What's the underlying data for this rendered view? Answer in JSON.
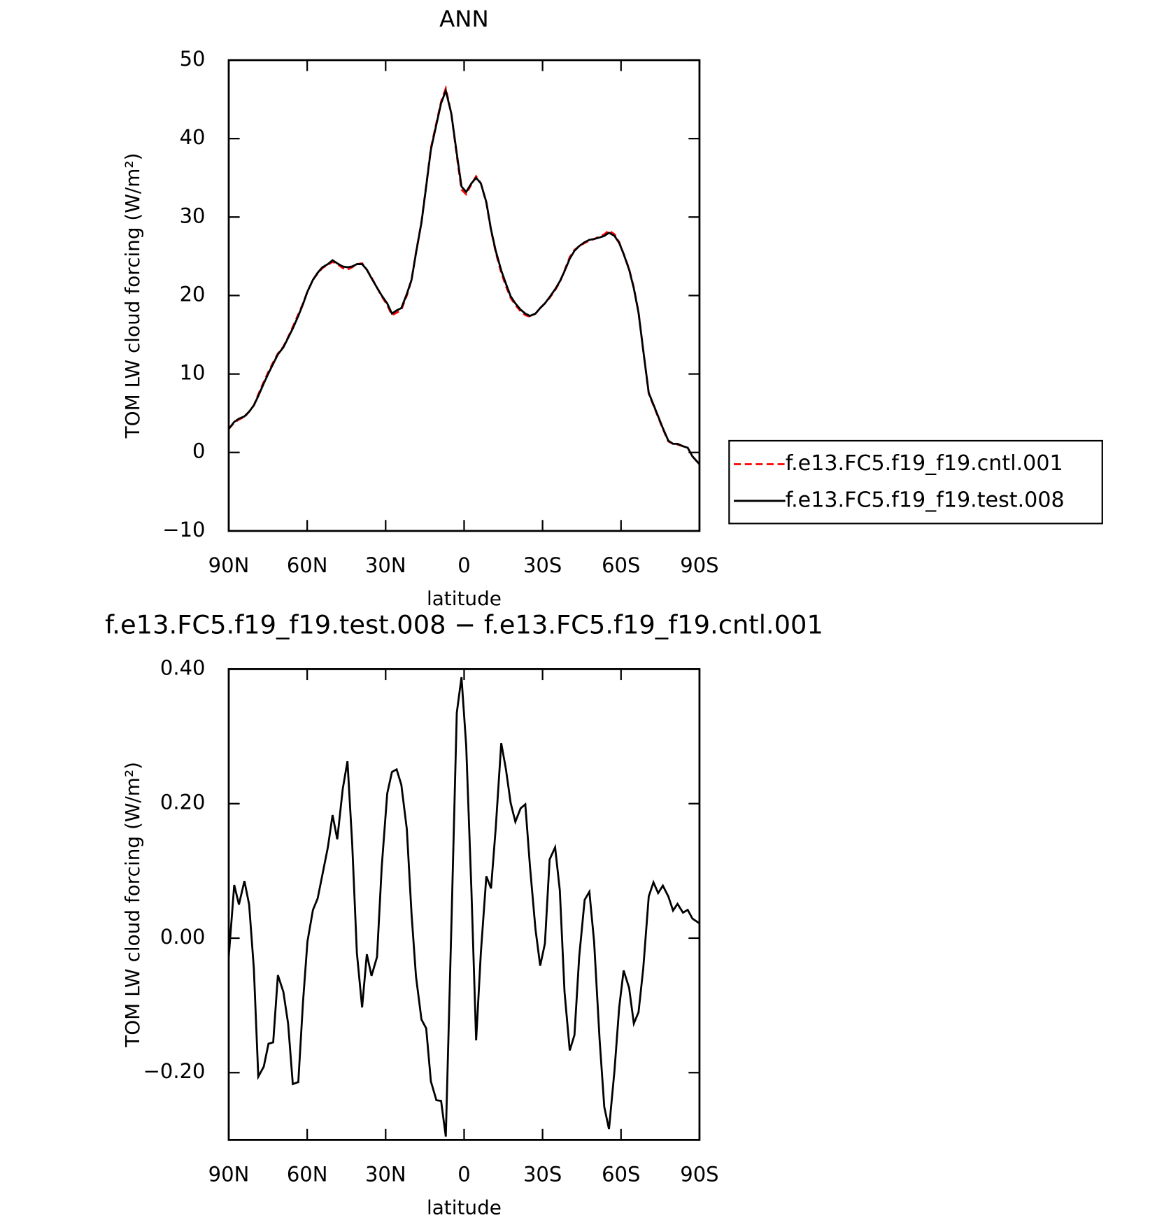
{
  "chart_data": [
    {
      "type": "line",
      "title": "ANN",
      "xlabel": "latitude",
      "ylabel": "TOM LW cloud forcing (W/m²)",
      "x": [
        90,
        87.9,
        86.1,
        84.0,
        82.2,
        80.4,
        78.7,
        76.6,
        74.8,
        73.0,
        71.2,
        69.1,
        67.3,
        65.5,
        63.4,
        61.6,
        59.9,
        57.8,
        56.0,
        54.2,
        52.1,
        50.3,
        48.5,
        46.4,
        44.6,
        42.8,
        41.0,
        39.0,
        37.2,
        35.4,
        33.3,
        31.5,
        29.4,
        27.6,
        25.8,
        24.0,
        21.9,
        20.1,
        18.4,
        16.3,
        14.5,
        12.7,
        10.6,
        8.8,
        7.0,
        4.9,
        2.8,
        1.0,
        -0.8,
        -2.8,
        -4.6,
        -6.4,
        -8.5,
        -10.3,
        -12.1,
        -14.2,
        -16.0,
        -17.8,
        -19.6,
        -21.6,
        -23.4,
        -25.2,
        -27.3,
        -29.1,
        -30.9,
        -32.7,
        -34.8,
        -36.6,
        -38.4,
        -40.4,
        -42.2,
        -44.0,
        -46.1,
        -47.9,
        -49.7,
        -51.8,
        -53.6,
        -55.4,
        -57.5,
        -59.3,
        -61.0,
        -63.1,
        -64.9,
        -66.7,
        -68.5,
        -70.6,
        -72.4,
        -74.2,
        -76.0,
        -78.1,
        -79.9,
        -81.6,
        -83.7,
        -85.5,
        -87.3,
        -90
      ],
      "series": [
        {
          "name": "f.e13.FC5.f19_f19.cntl.001",
          "color": "#ff0000",
          "linestyle": "dashed",
          "values": [
            3.0,
            3.8,
            4.2,
            4.5,
            5.2,
            6.0,
            7.4,
            9.0,
            10.3,
            11.5,
            12.6,
            13.5,
            14.7,
            16.0,
            17.6,
            19.0,
            20.5,
            22.0,
            22.8,
            23.5,
            23.9,
            24.3,
            24.0,
            23.5,
            23.3,
            23.6,
            24.0,
            24.1,
            23.3,
            22.3,
            21.0,
            19.9,
            18.8,
            17.5,
            17.8,
            18.2,
            20.0,
            22.0,
            25.5,
            29.4,
            34.0,
            38.8,
            42.0,
            44.7,
            46.4,
            43.2,
            37.8,
            33.5,
            32.9,
            34.2,
            35.2,
            34.3,
            31.8,
            28.3,
            25.5,
            22.9,
            21.2,
            19.7,
            18.8,
            18.0,
            17.5,
            17.3,
            17.7,
            18.4,
            19.0,
            19.7,
            20.7,
            21.7,
            23.2,
            24.9,
            25.8,
            26.3,
            26.7,
            27.0,
            27.2,
            27.5,
            27.8,
            28.3,
            27.8,
            26.8,
            25.3,
            23.4,
            21.0,
            17.9,
            13.0,
            7.5,
            6.0,
            4.5,
            3.0,
            1.4,
            1.1,
            1.0,
            0.8,
            0.6,
            -0.5,
            -1.5
          ]
        },
        {
          "name": "f.e13.FC5.f19_f19.test.008",
          "color": "#000000",
          "linestyle": "solid",
          "values": [
            3.0,
            3.9,
            4.3,
            4.6,
            5.2,
            6.0,
            7.2,
            8.8,
            10.1,
            11.3,
            12.5,
            13.4,
            14.6,
            15.8,
            17.4,
            18.9,
            20.5,
            22.0,
            22.9,
            23.6,
            24.0,
            24.5,
            24.1,
            23.7,
            23.6,
            23.7,
            24.0,
            24.0,
            23.3,
            22.2,
            21.0,
            20.0,
            19.0,
            17.7,
            18.1,
            18.4,
            20.2,
            22.0,
            25.4,
            29.3,
            33.9,
            38.6,
            41.8,
            44.5,
            46.1,
            43.2,
            38.1,
            33.9,
            33.2,
            34.3,
            35.0,
            34.3,
            31.9,
            28.4,
            25.7,
            23.2,
            21.5,
            19.9,
            19.0,
            18.2,
            17.7,
            17.4,
            17.7,
            18.4,
            19.0,
            19.8,
            20.8,
            21.8,
            23.1,
            24.7,
            25.7,
            26.3,
            26.8,
            27.1,
            27.2,
            27.4,
            27.6,
            28.0,
            27.6,
            26.7,
            25.3,
            23.3,
            20.9,
            17.8,
            13.0,
            7.6,
            6.1,
            4.6,
            3.1,
            1.5,
            1.1,
            1.1,
            0.8,
            0.6,
            -0.5,
            -1.5
          ]
        }
      ],
      "xlim": [
        90,
        -90
      ],
      "xticks": [
        {
          "value": 90,
          "label": "90N"
        },
        {
          "value": 60,
          "label": "60N"
        },
        {
          "value": 30,
          "label": "30N"
        },
        0,
        {
          "value": -30,
          "label": "30S"
        },
        {
          "value": -60,
          "label": "60S"
        },
        {
          "value": -90,
          "label": "90S"
        }
      ],
      "ylim": [
        -10,
        50
      ],
      "yticks": [
        {
          "value": -10,
          "label": "−10"
        },
        0,
        10,
        20,
        30,
        40,
        50
      ],
      "legend": "right"
    },
    {
      "type": "line",
      "title": "f.e13.FC5.f19_f19.test.008 − f.e13.FC5.f19_f19.cntl.001",
      "xlabel": "latitude",
      "ylabel": "TOM LW cloud forcing (W/m²)",
      "x": [
        90,
        87.9,
        86.1,
        84.0,
        82.2,
        80.4,
        78.7,
        76.6,
        74.8,
        73.0,
        71.2,
        69.1,
        67.3,
        65.5,
        63.4,
        61.6,
        59.9,
        57.8,
        56.0,
        54.2,
        52.1,
        50.3,
        48.5,
        46.4,
        44.6,
        42.8,
        41.0,
        39.0,
        37.2,
        35.4,
        33.3,
        31.5,
        29.4,
        27.6,
        25.8,
        24.0,
        21.9,
        20.1,
        18.4,
        16.3,
        14.5,
        12.7,
        10.6,
        8.8,
        7.0,
        4.9,
        2.8,
        1.0,
        -0.8,
        -2.8,
        -4.6,
        -6.4,
        -8.5,
        -10.3,
        -12.1,
        -14.2,
        -16.0,
        -17.8,
        -19.6,
        -21.6,
        -23.4,
        -25.2,
        -27.3,
        -29.1,
        -30.9,
        -32.7,
        -34.8,
        -36.6,
        -38.4,
        -40.4,
        -42.2,
        -44.0,
        -46.1,
        -47.9,
        -49.7,
        -51.8,
        -53.6,
        -55.4,
        -57.5,
        -59.3,
        -61.0,
        -63.1,
        -64.9,
        -66.7,
        -68.5,
        -70.6,
        -72.4,
        -74.2,
        -76.0,
        -78.1,
        -79.9,
        -81.6,
        -83.7,
        -85.5,
        -87.3,
        -90
      ],
      "values": [
        -0.028,
        0.079,
        0.05,
        0.085,
        0.05,
        -0.045,
        -0.206,
        -0.191,
        -0.157,
        -0.155,
        -0.055,
        -0.08,
        -0.127,
        -0.217,
        -0.214,
        -0.095,
        -0.005,
        0.042,
        0.059,
        0.094,
        0.135,
        0.183,
        0.147,
        0.222,
        0.263,
        0.141,
        -0.022,
        -0.103,
        -0.024,
        -0.056,
        -0.028,
        0.106,
        0.215,
        0.247,
        0.251,
        0.228,
        0.162,
        0.036,
        -0.057,
        -0.121,
        -0.134,
        -0.213,
        -0.241,
        -0.242,
        -0.295,
        0.013,
        0.335,
        0.388,
        0.286,
        0.071,
        -0.152,
        -0.022,
        0.092,
        0.074,
        0.164,
        0.29,
        0.251,
        0.201,
        0.173,
        0.193,
        0.199,
        0.106,
        0.013,
        -0.041,
        -0.008,
        0.117,
        0.135,
        0.071,
        -0.08,
        -0.167,
        -0.144,
        -0.028,
        0.057,
        0.069,
        -0.005,
        -0.15,
        -0.251,
        -0.284,
        -0.197,
        -0.103,
        -0.048,
        -0.074,
        -0.127,
        -0.11,
        -0.045,
        0.062,
        0.083,
        0.067,
        0.078,
        0.062,
        0.041,
        0.051,
        0.038,
        0.042,
        0.029,
        0.022
      ],
      "color": "#000000",
      "xlim": [
        90,
        -90
      ],
      "xticks": [
        {
          "value": 90,
          "label": "90N"
        },
        {
          "value": 60,
          "label": "60N"
        },
        {
          "value": 30,
          "label": "30N"
        },
        0,
        {
          "value": -30,
          "label": "30S"
        },
        {
          "value": -60,
          "label": "60S"
        },
        {
          "value": -90,
          "label": "90S"
        }
      ],
      "ylim": [
        -0.3,
        0.4
      ],
      "yticks": [
        {
          "value": -0.2,
          "label": "−0.20"
        },
        {
          "value": 0,
          "label": "0.00"
        },
        {
          "value": 0.2,
          "label": "0.20"
        },
        {
          "value": 0.4,
          "label": "0.40"
        }
      ]
    }
  ]
}
